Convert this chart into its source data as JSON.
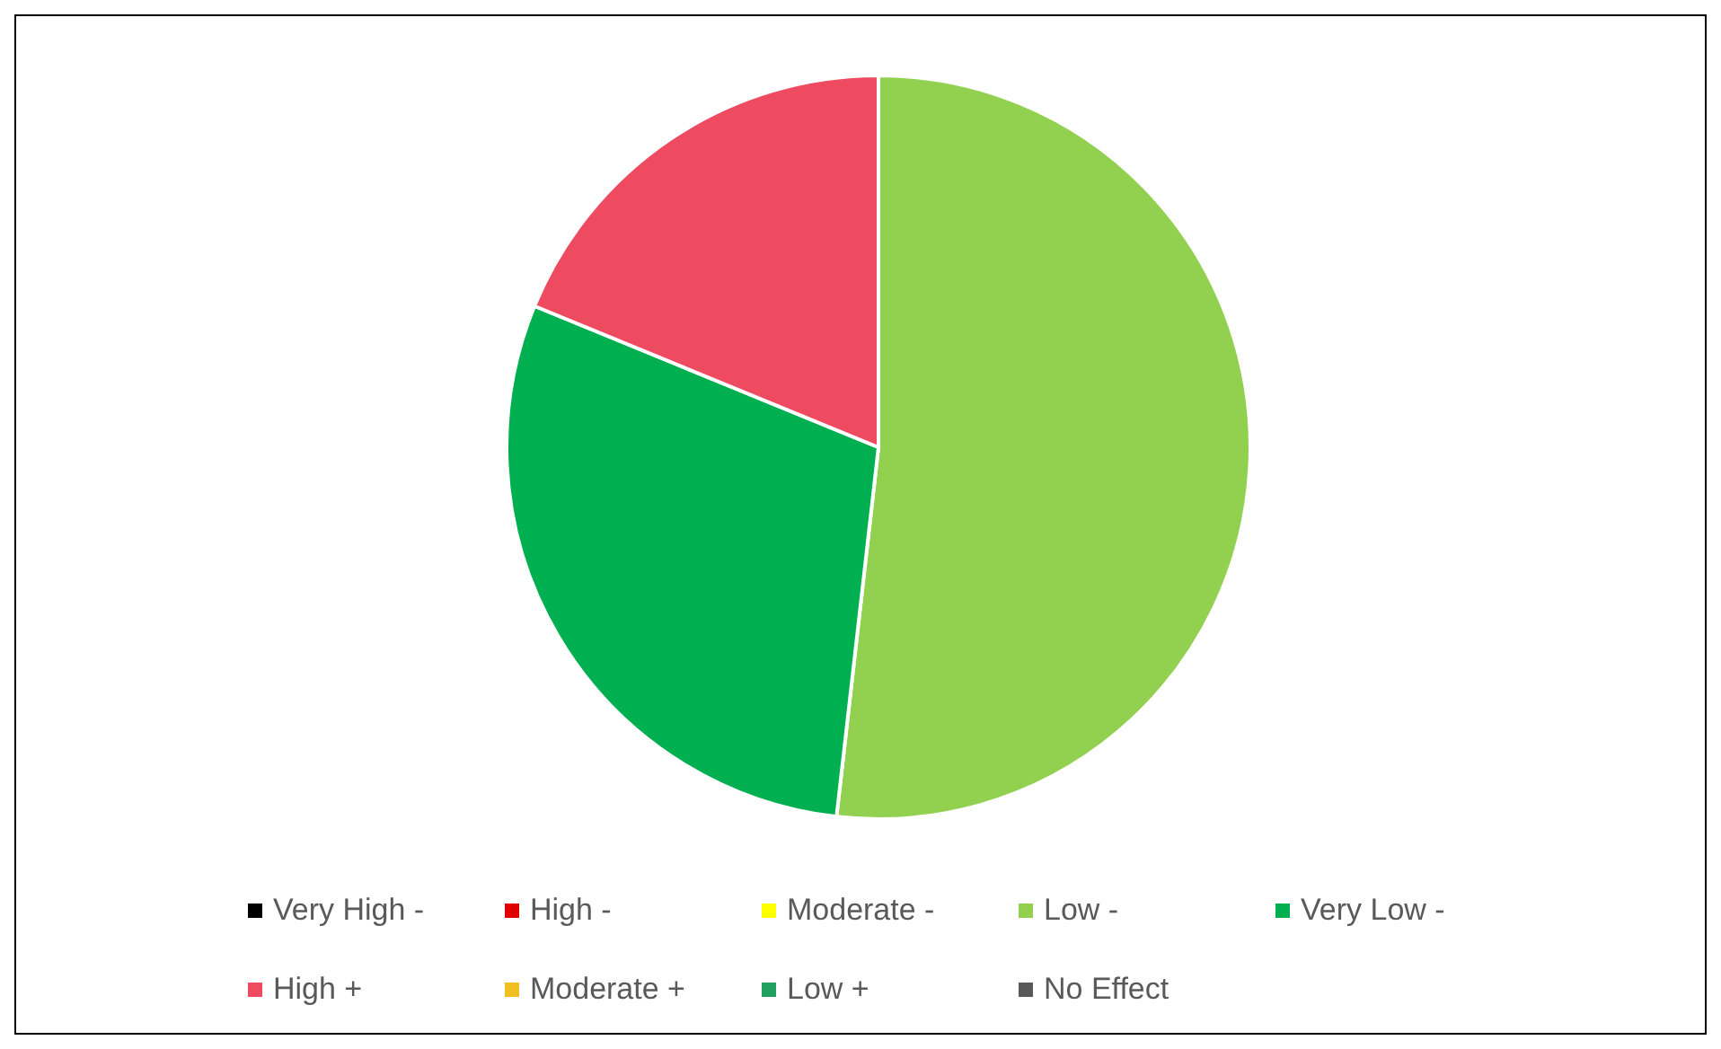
{
  "chart_data": {
    "type": "pie",
    "categories": [
      "Very High -",
      "High -",
      "Moderate -",
      "Low -",
      "Very Low -",
      "High +",
      "Moderate +",
      "Low +",
      "No Effect"
    ],
    "values": [
      0,
      0,
      0,
      51.8,
      29.4,
      18.8,
      0,
      0,
      0
    ],
    "colors": [
      "#000000",
      "#e00000",
      "#ffff00",
      "#92d050",
      "#00b050",
      "#ee4a60",
      "#f0c020",
      "#22a060",
      "#595959"
    ],
    "legend": "bottom"
  }
}
